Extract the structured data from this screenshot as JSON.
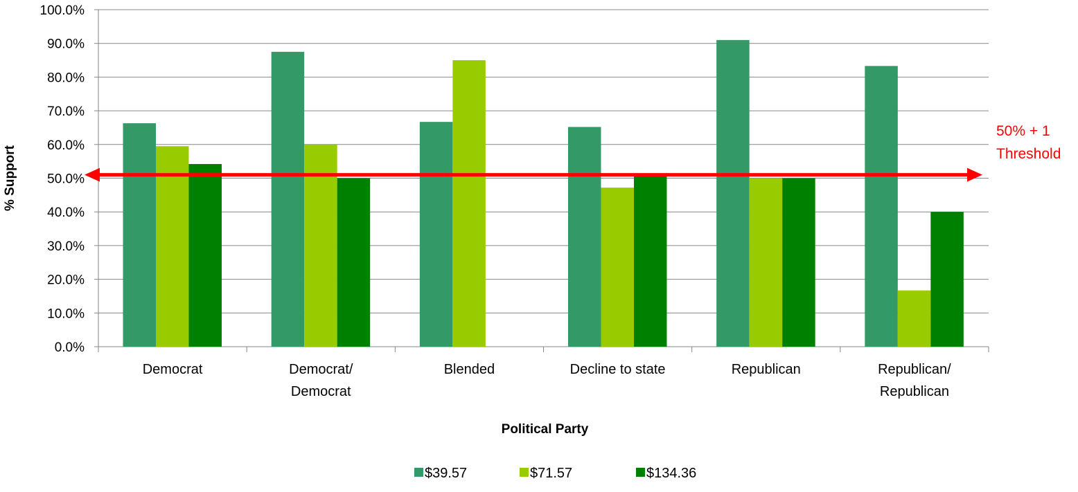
{
  "chart_data": {
    "type": "bar",
    "categories": [
      [
        "Democrat"
      ],
      [
        "Democrat/",
        "Democrat"
      ],
      [
        "Blended"
      ],
      [
        "Decline to state"
      ],
      [
        "Republican"
      ],
      [
        "Republican/",
        "Republican"
      ]
    ],
    "series": [
      {
        "name": "$39.57",
        "color": "#339966",
        "values": [
          66.3,
          87.5,
          66.7,
          65.2,
          91.0,
          83.3
        ]
      },
      {
        "name": "$71.57",
        "color": "#99CC00",
        "values": [
          59.5,
          60.0,
          85.0,
          47.2,
          50.0,
          16.7
        ]
      },
      {
        "name": "$134.36",
        "color": "#008000",
        "values": [
          54.2,
          50.0,
          null,
          50.8,
          50.0,
          40.0
        ]
      }
    ],
    "xlabel": "Political Party",
    "ylabel": "% Support",
    "ylim": [
      0,
      100
    ],
    "yticks": [
      0,
      10,
      20,
      30,
      40,
      50,
      60,
      70,
      80,
      90,
      100
    ],
    "ytick_labels": [
      "0.0%",
      "10.0%",
      "20.0%",
      "30.0%",
      "40.0%",
      "50.0%",
      "60.0%",
      "70.0%",
      "80.0%",
      "90.0%",
      "100.0%"
    ],
    "grid": true,
    "legend_position": "bottom",
    "threshold": {
      "value": 51,
      "color": "#FF0000",
      "label_lines": [
        "50% + 1",
        "Threshold"
      ]
    }
  }
}
